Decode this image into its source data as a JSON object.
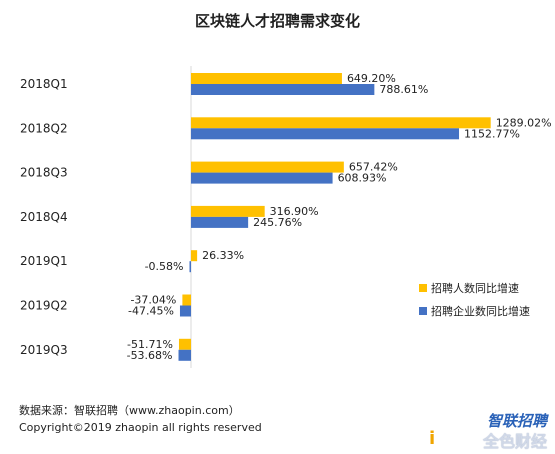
{
  "chart_data": {
    "type": "bar",
    "orientation": "horizontal",
    "title": "区块链人才招聘需求变化",
    "categories": [
      "2018Q1",
      "2018Q2",
      "2018Q3",
      "2018Q4",
      "2019Q1",
      "2019Q2",
      "2019Q3"
    ],
    "series": [
      {
        "name": "招聘人数同比增速",
        "color": "#ffc000",
        "values": [
          649.2,
          1289.02,
          657.42,
          316.9,
          26.33,
          -37.04,
          -51.71
        ],
        "labels": [
          "649.20%",
          "1289.02%",
          "657.42%",
          "316.90%",
          "26.33%",
          "-37.04%",
          "-51.71%"
        ]
      },
      {
        "name": "招聘企业数同比增速",
        "color": "#4472c4",
        "values": [
          788.61,
          1152.77,
          608.93,
          245.76,
          -0.58,
          -47.45,
          -53.68
        ],
        "labels": [
          "788.61%",
          "1152.77%",
          "608.93%",
          "245.76%",
          "-0.58%",
          "-47.45%",
          "-53.68%"
        ]
      }
    ],
    "grid": false,
    "legend_position": "right"
  },
  "footer": {
    "source": "数据来源：智联招聘（www.zhaopin.com）",
    "copyright": "Copyright©2019 zhaopin all rights reserved"
  },
  "watermark": {
    "mark": "i",
    "brand": "智联招聘",
    "sub": "全色财经"
  }
}
